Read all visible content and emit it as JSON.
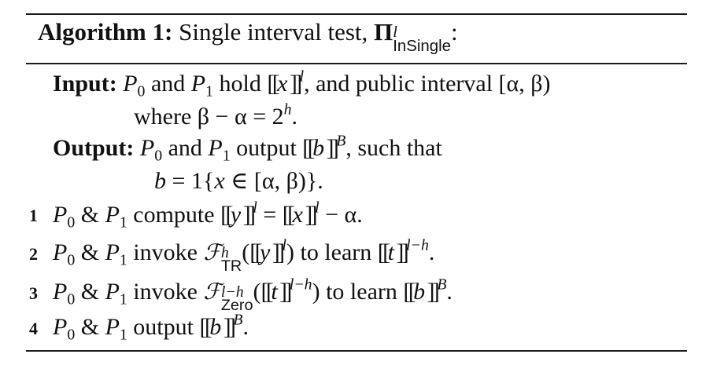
{
  "algorithm": {
    "label": "Algorithm 1:",
    "title": "Single interval test,",
    "pi": "Π",
    "pi_sup": "l",
    "pi_sub": "InSingle",
    "colon": ":"
  },
  "input": {
    "label": "Input:",
    "party0": "P",
    "party0_sub": "0",
    "and": "and",
    "party1": "P",
    "party1_sub": "1",
    "hold": "hold",
    "var_x": "x",
    "sup_l": "l",
    "rest": ", and public interval",
    "interval": "[α, β)",
    "where": "where",
    "expr": "β − α = 2",
    "exp_h": "h",
    "period": "."
  },
  "output": {
    "label": "Output:",
    "text": "output",
    "var_b": "b",
    "sup_B": "B",
    "such_that": ", such that",
    "cond_b": "b",
    "cond_eq": "= 1{",
    "cond_x": "x",
    "cond_in": "∈ [α, β)}."
  },
  "steps": [
    {
      "num": "1",
      "amp": "&",
      "verb": "compute",
      "var_y": "y",
      "sup_l": "l",
      "eq": "=",
      "var_x": "x",
      "minus": "− α."
    },
    {
      "num": "2",
      "amp": "&",
      "verb": "invoke",
      "F": "ℱ",
      "F_sup": "h",
      "F_sub": "TR",
      "var_y": "y",
      "sup_l": "l",
      "tail": "to learn",
      "var_t": "t",
      "sup": "l−h",
      "end": "."
    },
    {
      "num": "3",
      "amp": "&",
      "verb": "invoke",
      "F": "ℱ",
      "F_sup": "l−h",
      "F_sub": "Zero",
      "var_t": "t",
      "sup": "l−h",
      "tail": "to learn",
      "var_b": "b",
      "sup_B": "B",
      "end": "."
    },
    {
      "num": "4",
      "amp": "&",
      "verb": "output",
      "var_b": "b",
      "sup_B": "B",
      "end": "."
    }
  ]
}
